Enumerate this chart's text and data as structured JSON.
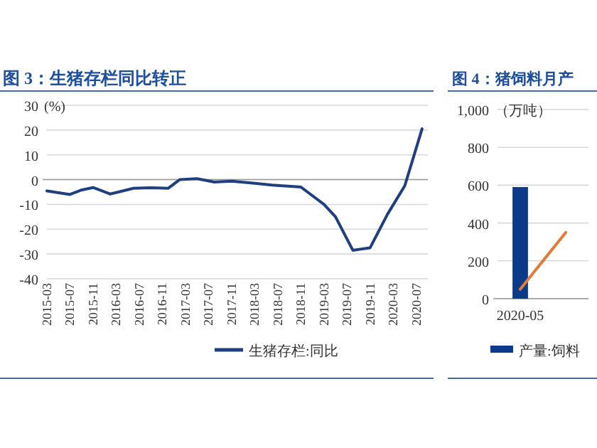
{
  "chart_data": [
    {
      "type": "line",
      "title": "图 3：生猪存栏同比转正",
      "ylabel": "(%)",
      "xlim": [
        "2015-03",
        "2020-09"
      ],
      "xticks": [
        "2015-03",
        "2015-07",
        "2015-11",
        "2016-03",
        "2016-07",
        "2016-11",
        "2017-03",
        "2017-07",
        "2017-11",
        "2018-03",
        "2018-07",
        "2018-11",
        "2019-03",
        "2019-07",
        "2019-11",
        "2020-03",
        "2020-07"
      ],
      "ylim": [
        -40,
        30
      ],
      "yticks": [
        -40,
        -30,
        -20,
        -10,
        0,
        10,
        20,
        30
      ],
      "grid": "y",
      "legend": "bottom",
      "series": [
        {
          "name": "生猪存栏:同比",
          "color": "#1f3f7f",
          "x": [
            "2015-03",
            "2015-07",
            "2015-09",
            "2015-11",
            "2016-02",
            "2016-06",
            "2016-09",
            "2016-12",
            "2017-02",
            "2017-05",
            "2017-08",
            "2017-11",
            "2018-03",
            "2018-06",
            "2018-11",
            "2019-03",
            "2019-05",
            "2019-08",
            "2019-11",
            "2020-02",
            "2020-05",
            "2020-08"
          ],
          "values": [
            -4.6,
            -6,
            -4.2,
            -3.2,
            -5.8,
            -3.5,
            -3.3,
            -3.5,
            0,
            0.4,
            -1,
            -0.6,
            -1.5,
            -2.2,
            -3,
            -10,
            -15,
            -28.5,
            -27.5,
            -14,
            -2.5,
            20.5
          ]
        }
      ]
    },
    {
      "type": "bar",
      "title": "图 4：猪饲料月产",
      "ylabel": "（万吨）",
      "categories": [
        "2020-05",
        null
      ],
      "ylim": [
        0,
        1000
      ],
      "yticks": [
        0,
        200,
        400,
        600,
        800,
        {
          "value": 1000,
          "label": "1,000"
        }
      ],
      "grid": "y",
      "legend": "bottom",
      "series": [
        {
          "name": "产量:饲料",
          "color": "#0b3a8a",
          "values": [
            590,
            null
          ]
        },
        {
          "type": "line",
          "color": "#e07b39",
          "values": [
            50,
            350
          ]
        }
      ]
    }
  ]
}
